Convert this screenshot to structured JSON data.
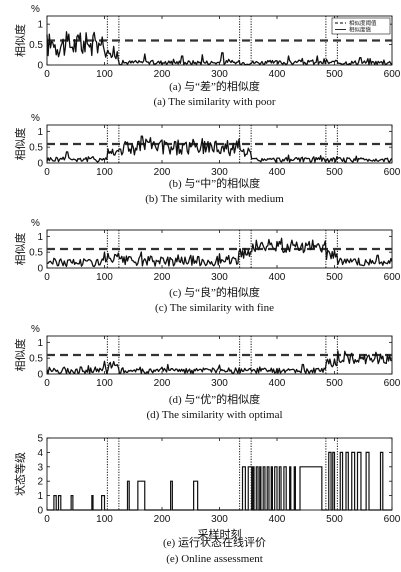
{
  "figure": {
    "unit_label": "%",
    "xlabel_bottom": "采样时刻"
  },
  "chart_data": [
    {
      "type": "line",
      "caption_cn": "(a) 与“差”的相似度",
      "caption_en": "(a) The similarity with poor",
      "ylabel": "相似度",
      "xlim": [
        0,
        600
      ],
      "ylim": [
        0,
        1.2
      ],
      "xticks": [
        0,
        100,
        200,
        300,
        400,
        500,
        600
      ],
      "yticks": [
        0,
        0.5,
        1
      ],
      "threshold": 0.6,
      "vlines": [
        105,
        125,
        335,
        355,
        485,
        505
      ],
      "legend": [
        "相似度阈值",
        "相似度值"
      ],
      "legend_position": "top-right",
      "segments": [
        {
          "x0": 0,
          "x1": 105,
          "base": 0.5,
          "amp": 0.35
        },
        {
          "x0": 105,
          "x1": 125,
          "base": 0.25,
          "amp": 0.25
        },
        {
          "x0": 125,
          "x1": 600,
          "base": 0.06,
          "amp": 0.06
        }
      ],
      "spikes": [
        [
          170,
          0.27
        ],
        [
          235,
          0.22
        ],
        [
          270,
          0.25
        ],
        [
          305,
          0.3
        ],
        [
          420,
          0.22
        ],
        [
          470,
          0.22
        ],
        [
          545,
          0.18
        ]
      ],
      "series": [
        {
          "name": "相似度阈值",
          "style": "dashed"
        },
        {
          "name": "相似度值",
          "style": "solid"
        }
      ]
    },
    {
      "type": "line",
      "caption_cn": "(b) 与“中”的相似度",
      "caption_en": "(b) The similarity with medium",
      "ylabel": "相似度",
      "xlim": [
        0,
        600
      ],
      "ylim": [
        0,
        1.2
      ],
      "xticks": [
        0,
        100,
        200,
        300,
        400,
        500,
        600
      ],
      "yticks": [
        0,
        0.5,
        1
      ],
      "threshold": 0.6,
      "vlines": [
        105,
        125,
        335,
        355,
        485,
        505
      ],
      "segments": [
        {
          "x0": 0,
          "x1": 105,
          "base": 0.12,
          "amp": 0.1
        },
        {
          "x0": 105,
          "x1": 125,
          "base": 0.35,
          "amp": 0.15
        },
        {
          "x0": 125,
          "x1": 335,
          "base": 0.5,
          "amp": 0.3
        },
        {
          "x0": 335,
          "x1": 355,
          "base": 0.35,
          "amp": 0.15
        },
        {
          "x0": 355,
          "x1": 600,
          "base": 0.1,
          "amp": 0.08
        }
      ],
      "spikes": [
        [
          35,
          0.35
        ],
        [
          165,
          0.85
        ],
        [
          180,
          0.8
        ],
        [
          420,
          0.25
        ]
      ]
    },
    {
      "type": "line",
      "caption_cn": "(c) 与“良”的相似度",
      "caption_en": "(c) The similarity with fine",
      "ylabel": "相似度",
      "xlim": [
        0,
        600
      ],
      "ylim": [
        0,
        1.2
      ],
      "xticks": [
        0,
        100,
        200,
        300,
        400,
        500,
        600
      ],
      "yticks": [
        0,
        0.5,
        1
      ],
      "threshold": 0.6,
      "vlines": [
        105,
        125,
        335,
        355,
        485,
        505
      ],
      "segments": [
        {
          "x0": 0,
          "x1": 105,
          "base": 0.18,
          "amp": 0.15
        },
        {
          "x0": 105,
          "x1": 125,
          "base": 0.3,
          "amp": 0.2
        },
        {
          "x0": 125,
          "x1": 335,
          "base": 0.22,
          "amp": 0.18
        },
        {
          "x0": 335,
          "x1": 355,
          "base": 0.45,
          "amp": 0.2
        },
        {
          "x0": 355,
          "x1": 485,
          "base": 0.68,
          "amp": 0.22
        },
        {
          "x0": 485,
          "x1": 505,
          "base": 0.45,
          "amp": 0.2
        },
        {
          "x0": 505,
          "x1": 600,
          "base": 0.18,
          "amp": 0.15
        }
      ],
      "spikes": [
        [
          100,
          0.5
        ],
        [
          250,
          0.4
        ],
        [
          300,
          0.45
        ],
        [
          575,
          0.4
        ]
      ]
    },
    {
      "type": "line",
      "caption_cn": "(d) 与“优”的相似度",
      "caption_en": "(d) The similarity with optimal",
      "ylabel": "相似度",
      "xlim": [
        0,
        600
      ],
      "ylim": [
        0,
        1.2
      ],
      "xticks": [
        0,
        100,
        200,
        300,
        400,
        500,
        600
      ],
      "yticks": [
        0,
        0.5,
        1
      ],
      "threshold": 0.6,
      "vlines": [
        105,
        125,
        335,
        355,
        485,
        505
      ],
      "segments": [
        {
          "x0": 0,
          "x1": 105,
          "base": 0.12,
          "amp": 0.12
        },
        {
          "x0": 105,
          "x1": 125,
          "base": 0.25,
          "amp": 0.15
        },
        {
          "x0": 125,
          "x1": 485,
          "base": 0.1,
          "amp": 0.1
        },
        {
          "x0": 485,
          "x1": 505,
          "base": 0.35,
          "amp": 0.2
        },
        {
          "x0": 505,
          "x1": 600,
          "base": 0.5,
          "amp": 0.2
        }
      ],
      "spikes": [
        [
          100,
          0.4
        ],
        [
          210,
          0.3
        ],
        [
          300,
          0.28
        ],
        [
          445,
          0.3
        ]
      ]
    },
    {
      "type": "line",
      "caption_cn": "(e) 运行状态在线评价",
      "caption_en": "(e) Online assessment",
      "ylabel": "状态等级",
      "xlabel": "采样时刻",
      "xlim": [
        0,
        600
      ],
      "ylim": [
        0,
        5
      ],
      "xticks": [
        0,
        100,
        200,
        300,
        400,
        500,
        600
      ],
      "yticks": [
        0,
        1,
        2,
        3,
        4,
        5
      ],
      "vlines": [
        105,
        125,
        335,
        355,
        485,
        505
      ],
      "pulses": [
        [
          12,
          16,
          1
        ],
        [
          20,
          24,
          1
        ],
        [
          42,
          45,
          1
        ],
        [
          78,
          80,
          1
        ],
        [
          95,
          100,
          1
        ],
        [
          140,
          143,
          2
        ],
        [
          158,
          170,
          2
        ],
        [
          215,
          218,
          2
        ],
        [
          255,
          262,
          2
        ],
        [
          340,
          345,
          3
        ],
        [
          350,
          356,
          3
        ],
        [
          358,
          360,
          3
        ],
        [
          364,
          367,
          3
        ],
        [
          370,
          372,
          3
        ],
        [
          376,
          379,
          3
        ],
        [
          383,
          386,
          3
        ],
        [
          390,
          392,
          3
        ],
        [
          396,
          400,
          3
        ],
        [
          404,
          407,
          3
        ],
        [
          412,
          416,
          3
        ],
        [
          422,
          424,
          3
        ],
        [
          430,
          432,
          3
        ],
        [
          440,
          478,
          3
        ],
        [
          490,
          494,
          4
        ],
        [
          497,
          500,
          4
        ],
        [
          510,
          514,
          4
        ],
        [
          520,
          524,
          4
        ],
        [
          530,
          535,
          4
        ],
        [
          540,
          546,
          4
        ],
        [
          555,
          560,
          4
        ],
        [
          580,
          584,
          4
        ]
      ]
    }
  ]
}
